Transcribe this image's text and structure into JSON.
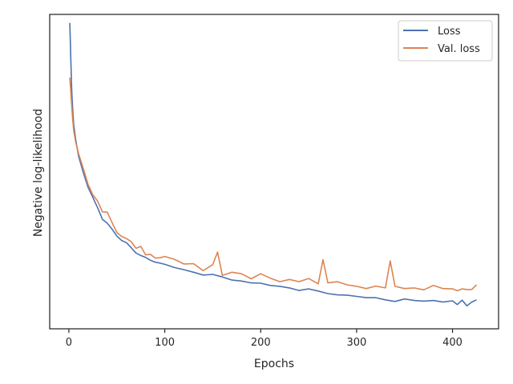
{
  "chart_data": {
    "type": "line",
    "title": "",
    "xlabel": "Epochs",
    "ylabel": "Negative log-likelihood",
    "xlim": [
      -20,
      448
    ],
    "ylim": [
      0,
      1
    ],
    "xticks": [
      0,
      100,
      200,
      300,
      400
    ],
    "yticks_labeled": false,
    "grid": false,
    "legend_position": "top-right",
    "series": [
      {
        "name": "Loss",
        "color": "#4c72b0",
        "x": [
          1,
          2,
          3,
          4,
          5,
          7,
          10,
          15,
          20,
          25,
          30,
          35,
          40,
          45,
          50,
          55,
          60,
          65,
          70,
          75,
          80,
          85,
          90,
          95,
          100,
          110,
          120,
          130,
          140,
          150,
          160,
          170,
          180,
          190,
          200,
          210,
          220,
          230,
          240,
          250,
          260,
          270,
          280,
          290,
          300,
          310,
          320,
          330,
          340,
          350,
          360,
          370,
          380,
          390,
          400,
          405,
          410,
          415,
          420,
          425
        ],
        "y": [
          0.973,
          0.862,
          0.756,
          0.697,
          0.651,
          0.604,
          0.55,
          0.497,
          0.45,
          0.418,
          0.385,
          0.348,
          0.336,
          0.317,
          0.295,
          0.281,
          0.274,
          0.258,
          0.241,
          0.233,
          0.227,
          0.218,
          0.212,
          0.209,
          0.205,
          0.195,
          0.188,
          0.18,
          0.171,
          0.173,
          0.165,
          0.155,
          0.152,
          0.146,
          0.145,
          0.138,
          0.135,
          0.13,
          0.122,
          0.127,
          0.12,
          0.112,
          0.108,
          0.107,
          0.103,
          0.099,
          0.099,
          0.092,
          0.087,
          0.095,
          0.09,
          0.088,
          0.09,
          0.085,
          0.089,
          0.077,
          0.091,
          0.073,
          0.085,
          0.092
        ]
      },
      {
        "name": "Val. loss",
        "color": "#dd8452",
        "x": [
          1,
          2,
          3,
          4,
          5,
          7,
          10,
          15,
          20,
          25,
          30,
          35,
          40,
          45,
          50,
          55,
          60,
          65,
          70,
          75,
          80,
          85,
          90,
          95,
          100,
          110,
          120,
          130,
          140,
          150,
          155,
          160,
          170,
          180,
          190,
          200,
          210,
          220,
          230,
          240,
          250,
          260,
          265,
          270,
          280,
          290,
          300,
          310,
          320,
          330,
          335,
          340,
          350,
          360,
          370,
          380,
          390,
          400,
          405,
          410,
          415,
          420,
          425
        ],
        "y": [
          0.799,
          0.755,
          0.707,
          0.665,
          0.632,
          0.595,
          0.558,
          0.51,
          0.459,
          0.426,
          0.406,
          0.372,
          0.371,
          0.338,
          0.306,
          0.294,
          0.287,
          0.277,
          0.256,
          0.262,
          0.235,
          0.237,
          0.225,
          0.226,
          0.23,
          0.221,
          0.206,
          0.207,
          0.185,
          0.204,
          0.244,
          0.17,
          0.18,
          0.175,
          0.159,
          0.175,
          0.161,
          0.15,
          0.157,
          0.15,
          0.16,
          0.143,
          0.22,
          0.146,
          0.15,
          0.14,
          0.135,
          0.128,
          0.136,
          0.13,
          0.216,
          0.135,
          0.128,
          0.13,
          0.124,
          0.138,
          0.128,
          0.127,
          0.121,
          0.127,
          0.125,
          0.125,
          0.14
        ]
      }
    ]
  }
}
